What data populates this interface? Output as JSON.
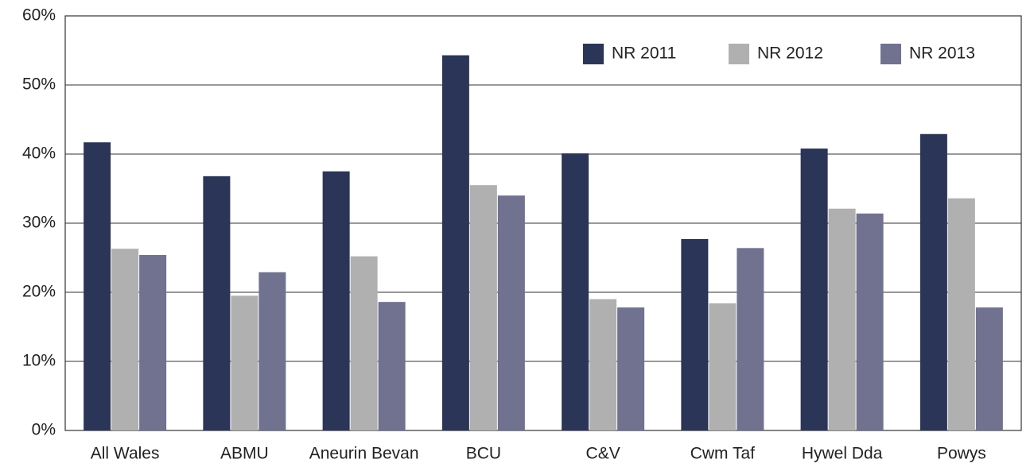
{
  "chart_data": {
    "type": "bar",
    "categories": [
      "All Wales",
      "ABMU",
      "Aneurin Bevan",
      "BCU",
      "C&V",
      "Cwm Taf",
      "Hywel Dda",
      "Powys"
    ],
    "series": [
      {
        "name": "NR 2011",
        "color": "#2b3558",
        "values": [
          41.7,
          36.8,
          37.5,
          54.3,
          40.1,
          27.7,
          40.8,
          42.9
        ]
      },
      {
        "name": "NR 2012",
        "color": "#b0b0b0",
        "values": [
          26.3,
          19.5,
          25.2,
          35.5,
          19.0,
          18.4,
          32.1,
          33.6
        ]
      },
      {
        "name": "NR 2013",
        "color": "#717290",
        "values": [
          25.4,
          22.9,
          18.6,
          34.0,
          17.8,
          26.4,
          31.4,
          17.8
        ]
      }
    ],
    "ylim": [
      0,
      60
    ],
    "yticks": [
      {
        "value": 0,
        "label": "0%"
      },
      {
        "value": 10,
        "label": "10%"
      },
      {
        "value": 20,
        "label": "20%"
      },
      {
        "value": 30,
        "label": "30%"
      },
      {
        "value": 40,
        "label": "40%"
      },
      {
        "value": 50,
        "label": "50%"
      },
      {
        "value": 60,
        "label": "60%"
      }
    ],
    "grid": true,
    "legend": "top-right"
  }
}
